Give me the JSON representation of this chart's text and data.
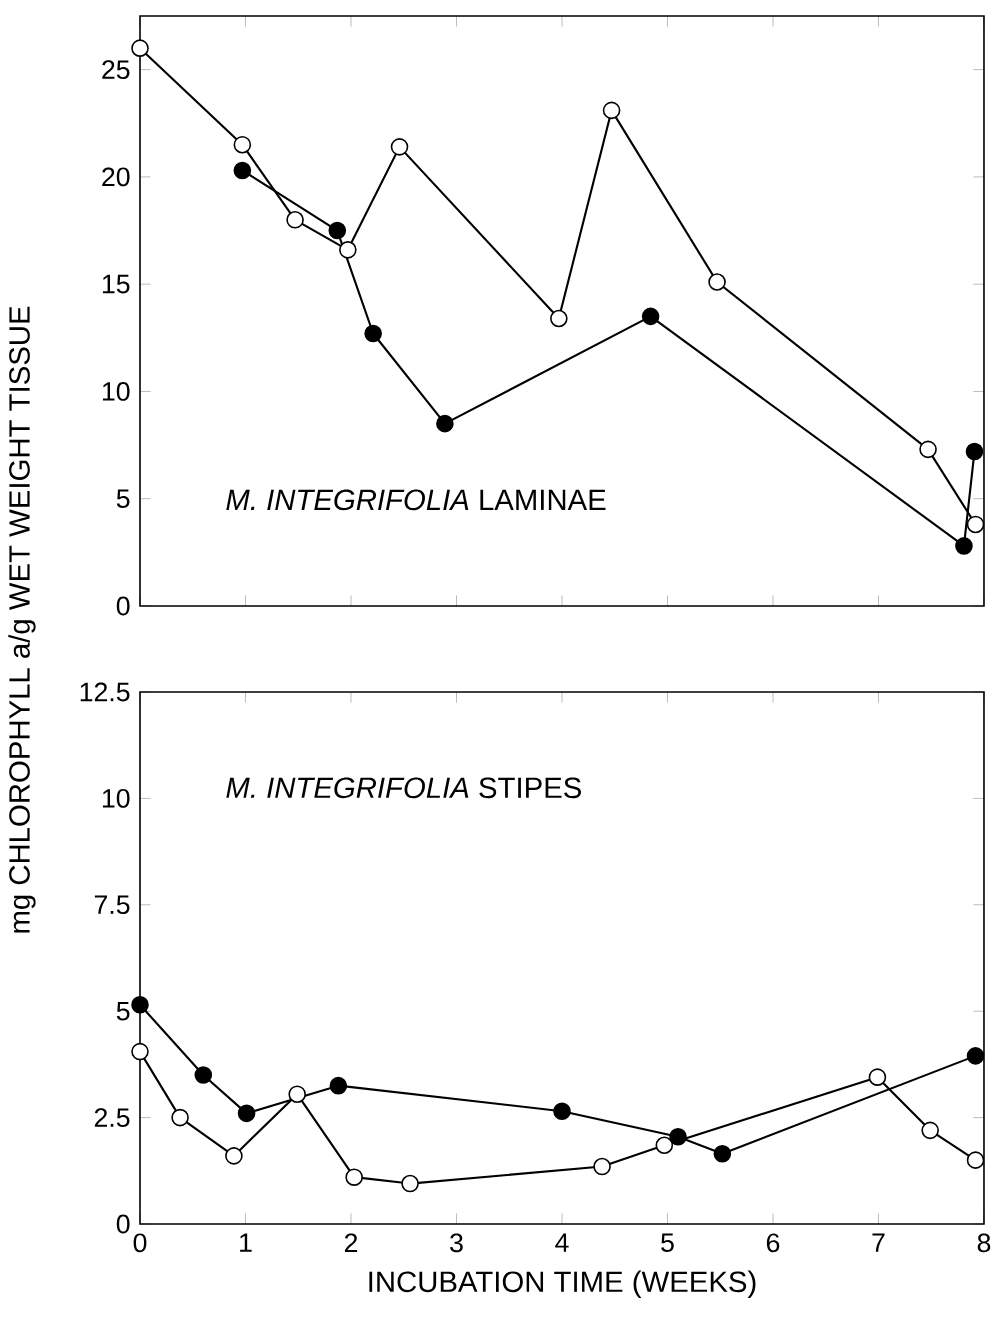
{
  "chart_data": [
    {
      "type": "line",
      "ylabel": "mg CHLOROPHYLL a/g WET WEIGHT TISSUE",
      "annotations": [
        "*M. INTEGRIFOLIA* LAMINAE"
      ],
      "xlim": [
        0,
        8
      ],
      "ylim": [
        0,
        27.5
      ],
      "xticks": [
        0,
        1,
        2,
        3,
        4,
        5,
        6,
        7,
        8
      ],
      "yticks": [
        0,
        5,
        10,
        15,
        20,
        25
      ],
      "tick_labels": "y",
      "marker": "circle",
      "series": [
        {
          "color": "#ffffff",
          "x": [
            0,
            0.97,
            1.47,
            1.97,
            2.46,
            3.97,
            4.47,
            5.47,
            7.47,
            7.92
          ],
          "values": [
            26.0,
            21.5,
            18.0,
            16.6,
            21.4,
            13.4,
            23.1,
            15.1,
            7.3,
            3.8
          ]
        },
        {
          "color": "#000000",
          "x": [
            0.97,
            1.87,
            2.21,
            2.89,
            4.84,
            7.81,
            7.91
          ],
          "values": [
            20.3,
            17.5,
            12.7,
            8.5,
            13.5,
            2.8,
            7.2
          ]
        }
      ]
    },
    {
      "type": "line",
      "xlabel": "INCUBATION TIME (WEEKS)",
      "annotations": [
        "*M. INTEGRIFOLIA* STIPES"
      ],
      "xlim": [
        0,
        8
      ],
      "ylim": [
        0,
        12.5
      ],
      "xticks": [
        0,
        1,
        2,
        3,
        4,
        5,
        6,
        7,
        8
      ],
      "yticks": [
        0,
        2.5,
        5,
        7.5,
        10,
        12.5
      ],
      "marker": "circle",
      "series": [
        {
          "color": "#000000",
          "x": [
            0,
            0.6,
            1.01,
            1.88,
            4.0,
            5.1,
            5.52,
            7.92
          ],
          "values": [
            5.15,
            3.5,
            2.6,
            3.25,
            2.65,
            2.05,
            1.65,
            3.95
          ]
        },
        {
          "color": "#ffffff",
          "x": [
            0,
            0.38,
            0.89,
            1.49,
            2.03,
            2.56,
            4.38,
            4.97,
            6.99,
            7.49,
            7.92
          ],
          "values": [
            4.05,
            2.5,
            1.6,
            3.05,
            1.1,
            0.95,
            1.35,
            1.85,
            3.45,
            2.2,
            1.5
          ]
        }
      ]
    }
  ]
}
